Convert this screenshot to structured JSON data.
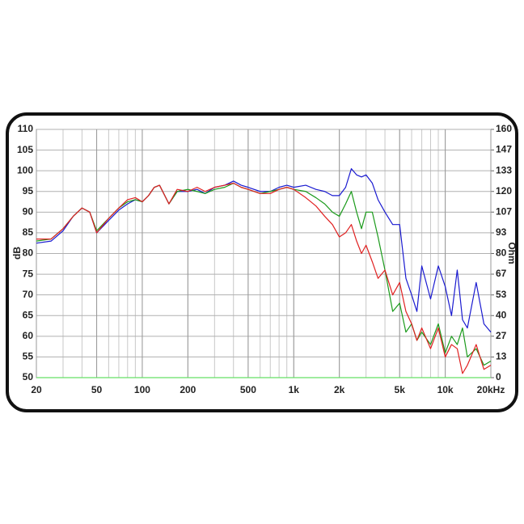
{
  "chart_data": {
    "type": "line",
    "x": [
      20,
      25,
      30,
      35,
      40,
      45,
      50,
      60,
      70,
      80,
      90,
      100,
      110,
      120,
      130,
      150,
      170,
      200,
      230,
      260,
      300,
      350,
      400,
      450,
      500,
      600,
      700,
      800,
      900,
      1000,
      1200,
      1400,
      1600,
      1800,
      2000,
      2200,
      2400,
      2600,
      2800,
      3000,
      3300,
      3600,
      4000,
      4500,
      5000,
      5500,
      6000,
      6500,
      7000,
      8000,
      9000,
      10000,
      11000,
      12000,
      13000,
      14000,
      16000,
      18000,
      20000
    ],
    "xscale": "log",
    "xlim": [
      20,
      20000
    ],
    "xticks": [
      20,
      50,
      100,
      200,
      500,
      {
        "value": 1000,
        "label": "1k"
      },
      {
        "value": 2000,
        "label": "2k"
      },
      {
        "value": 5000,
        "label": "5k"
      },
      {
        "value": 10000,
        "label": "10k"
      },
      {
        "value": 20000,
        "label": "20kHz"
      }
    ],
    "ylabel": "dB",
    "ylim": [
      50,
      110
    ],
    "yticks": [
      50,
      55,
      60,
      65,
      70,
      75,
      80,
      85,
      90,
      95,
      100,
      105,
      110
    ],
    "y2label": "Ohm",
    "y2lim": [
      0,
      160
    ],
    "y2ticks": [
      0,
      {
        "value": 13.3,
        "label": "13"
      },
      {
        "value": 26.7,
        "label": "27"
      },
      40,
      {
        "value": 53.3,
        "label": "53"
      },
      {
        "value": 66.7,
        "label": "67"
      },
      80,
      {
        "value": 93.3,
        "label": "93"
      },
      {
        "value": 106.7,
        "label": "107"
      },
      120,
      {
        "value": 133.3,
        "label": "133"
      },
      {
        "value": 146.7,
        "label": "147"
      },
      160
    ],
    "grid": true,
    "series": [
      {
        "color": "#1a1ad0",
        "values": [
          82.5,
          83,
          85.5,
          89,
          91,
          90,
          85,
          88,
          90.5,
          92,
          93,
          92.5,
          94,
          96,
          96.5,
          92,
          95,
          95,
          95.5,
          94.5,
          96,
          96.5,
          97.5,
          96.5,
          96,
          95,
          95,
          96,
          96.5,
          96,
          96.5,
          95.5,
          95,
          94,
          94,
          96,
          100.5,
          99,
          98.5,
          99,
          97,
          93,
          90,
          87,
          87,
          74,
          70,
          66,
          77,
          69,
          77,
          72,
          65,
          76,
          64,
          62,
          73,
          63,
          61
        ]
      },
      {
        "color": "#1a9a1a",
        "values": [
          83,
          83.5,
          86,
          89,
          91,
          90,
          85.5,
          88.5,
          91,
          92.5,
          93,
          92.5,
          94,
          96,
          96.5,
          92,
          95,
          95.5,
          95,
          94.5,
          95.5,
          96,
          97,
          96,
          95.5,
          94.5,
          95,
          95.5,
          96,
          95.5,
          95,
          93.5,
          92,
          90,
          89,
          92,
          95,
          90,
          86,
          90,
          90,
          84,
          76,
          66,
          68,
          61,
          63,
          59,
          61,
          58,
          63,
          56,
          60,
          58,
          62,
          55,
          57,
          53,
          54
        ]
      },
      {
        "color": "#e02020",
        "values": [
          83.5,
          83.5,
          86,
          89,
          91,
          90,
          85,
          88.5,
          91,
          93,
          93.5,
          92.5,
          94,
          96,
          96.5,
          92,
          95.5,
          95,
          96,
          95,
          96,
          96.5,
          97,
          96,
          95.5,
          94.5,
          94.5,
          95.5,
          96,
          95.5,
          93.5,
          91.5,
          89,
          87,
          84,
          85,
          87,
          83,
          80,
          82,
          78,
          74,
          76,
          70,
          73,
          66,
          63,
          59,
          62,
          57,
          62,
          55,
          58,
          57,
          51,
          53,
          58,
          52,
          53
        ]
      },
      {
        "color": "#66e066",
        "axis": "y2",
        "values": [
          0,
          0,
          0,
          0,
          0,
          0,
          0,
          0,
          0,
          0,
          0,
          0,
          0,
          0,
          0,
          0,
          0,
          0,
          0,
          0,
          0,
          0,
          0,
          0,
          0,
          0,
          0,
          0,
          0,
          0,
          0,
          0,
          0,
          0,
          0,
          0,
          0,
          0,
          0,
          0,
          0,
          0,
          0,
          0,
          0,
          0,
          0,
          0,
          0,
          0,
          0,
          0,
          0,
          0,
          0,
          0,
          0,
          0,
          0
        ]
      }
    ]
  }
}
